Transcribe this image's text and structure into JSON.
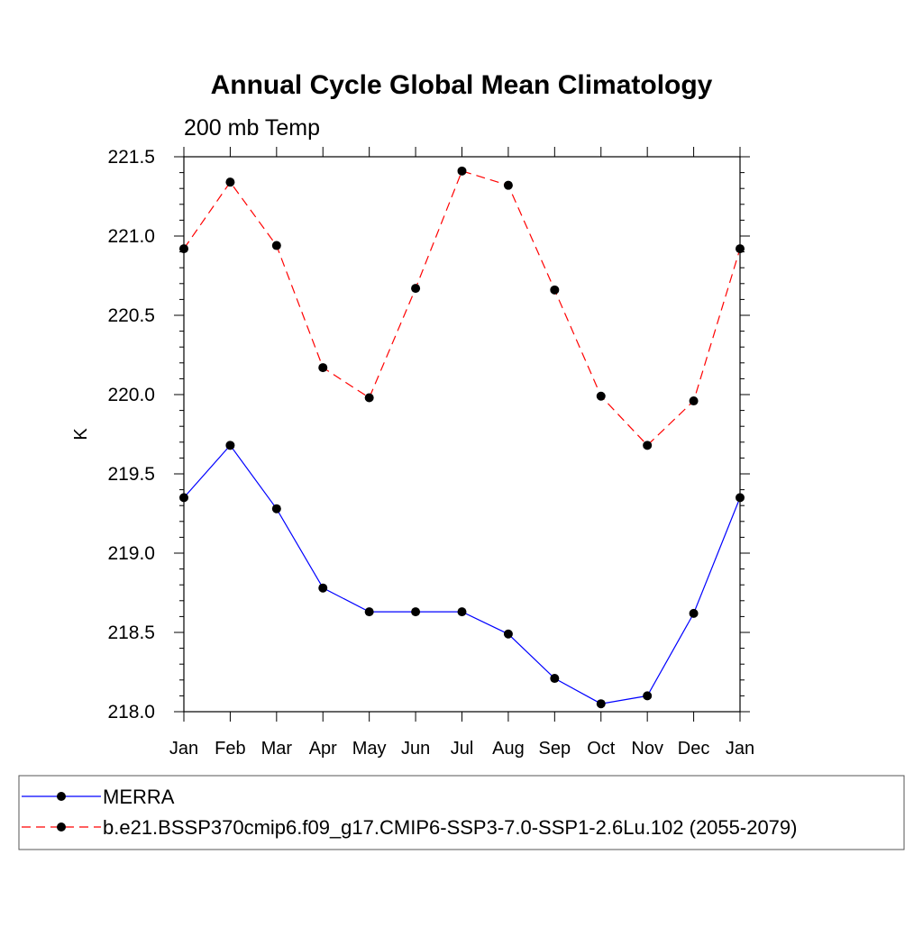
{
  "chart_data": {
    "type": "line",
    "title": "Annual Cycle Global Mean Climatology",
    "subtitle": "200 mb Temp",
    "xlabel": "",
    "ylabel": "K",
    "categories": [
      "Jan",
      "Feb",
      "Mar",
      "Apr",
      "May",
      "Jun",
      "Jul",
      "Aug",
      "Sep",
      "Oct",
      "Nov",
      "Dec",
      "Jan"
    ],
    "ylim": [
      218.0,
      221.5
    ],
    "yticks": [
      "218.0",
      "218.5",
      "219.0",
      "219.5",
      "220.0",
      "220.5",
      "221.0",
      "221.5"
    ],
    "grid": false,
    "legend_position": "bottom",
    "series": [
      {
        "name": "MERRA",
        "color": "#0000ff",
        "line_style": "solid",
        "marker": "filled-circle",
        "values": [
          219.35,
          219.68,
          219.28,
          218.78,
          218.63,
          218.63,
          218.63,
          218.49,
          218.21,
          218.05,
          218.1,
          218.62,
          219.35
        ]
      },
      {
        "name": "b.e21.BSSP370cmip6.f09_g17.CMIP6-SSP3-7.0-SSP1-2.6Lu.102 (2055-2079)",
        "color": "#ff0000",
        "line_style": "dashed",
        "marker": "filled-circle",
        "values": [
          220.92,
          221.34,
          220.94,
          220.17,
          219.98,
          220.67,
          221.41,
          221.32,
          220.66,
          219.99,
          219.68,
          219.96,
          220.92
        ]
      }
    ]
  }
}
